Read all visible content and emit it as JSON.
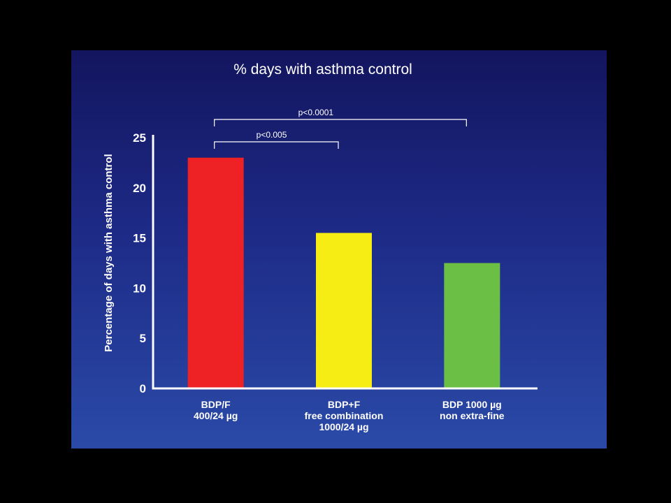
{
  "chart_data": {
    "type": "bar",
    "title": "% days with asthma control",
    "ylabel": "Percentage of days with asthma control",
    "xlabel": "",
    "ylim": [
      0,
      25
    ],
    "yticks": [
      0,
      5,
      10,
      15,
      20,
      25
    ],
    "categories": [
      [
        "BDP/F",
        "400/24 µg"
      ],
      [
        "BDP+F",
        "free combination",
        "1000/24 µg"
      ],
      [
        "BDP 1000 µg",
        "non extra-fine"
      ]
    ],
    "values": [
      23,
      15.5,
      12.5
    ],
    "colors": [
      "#ee2224",
      "#f5ed13",
      "#6cbf45"
    ],
    "grid": false,
    "legend": "none",
    "annotations": [
      {
        "text": "p<0.005",
        "from": 0,
        "to": 1
      },
      {
        "text": "p<0.0001",
        "from": 0,
        "to": 2
      }
    ]
  }
}
